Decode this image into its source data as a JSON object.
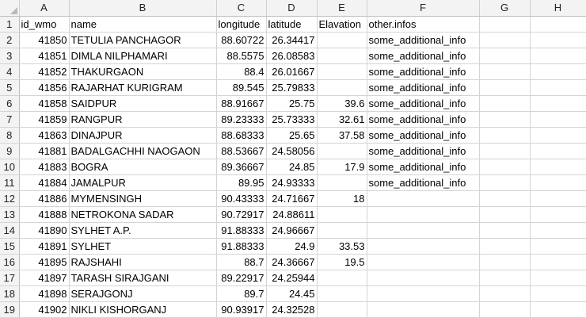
{
  "columns": [
    "A",
    "B",
    "C",
    "D",
    "E",
    "F",
    "G",
    "H"
  ],
  "row_numbers": [
    "1",
    "2",
    "3",
    "4",
    "5",
    "6",
    "7",
    "8",
    "9",
    "10",
    "11",
    "12",
    "13",
    "14",
    "15",
    "16",
    "17",
    "18",
    "19"
  ],
  "header_row": [
    "id_wmo",
    "name",
    "longitude",
    "latitude",
    "Elavation",
    "other.infos",
    "",
    ""
  ],
  "rows": [
    [
      "41850",
      "TETULIA PANCHAGOR",
      "88.60722",
      "26.34417",
      "",
      "some_additional_info"
    ],
    [
      "41851",
      "DIMLA NILPHAMARI",
      "88.5575",
      "26.08583",
      "",
      "some_additional_info"
    ],
    [
      "41852",
      "THAKURGAON",
      "88.4",
      "26.01667",
      "",
      "some_additional_info"
    ],
    [
      "41856",
      "RAJARHAT KURIGRAM",
      "89.545",
      "25.79833",
      "",
      "some_additional_info"
    ],
    [
      "41858",
      "SAIDPUR",
      "88.91667",
      "25.75",
      "39.6",
      "some_additional_info"
    ],
    [
      "41859",
      "RANGPUR",
      "89.23333",
      "25.73333",
      "32.61",
      "some_additional_info"
    ],
    [
      "41863",
      "DINAJPUR",
      "88.68333",
      "25.65",
      "37.58",
      "some_additional_info"
    ],
    [
      "41881",
      "BADALGACHHI NAOGAON",
      "88.53667",
      "24.58056",
      "",
      "some_additional_info"
    ],
    [
      "41883",
      "BOGRA",
      "89.36667",
      "24.85",
      "17.9",
      "some_additional_info"
    ],
    [
      "41884",
      "JAMALPUR",
      "89.95",
      "24.93333",
      "",
      "some_additional_info"
    ],
    [
      "41886",
      "MYMENSINGH",
      "90.43333",
      "24.71667",
      "18",
      ""
    ],
    [
      "41888",
      "NETROKONA SADAR",
      "90.72917",
      "24.88611",
      "",
      ""
    ],
    [
      "41890",
      "SYLHET A.P.",
      "91.88333",
      "24.96667",
      "",
      ""
    ],
    [
      "41891",
      "SYLHET",
      "91.88333",
      "24.9",
      "33.53",
      ""
    ],
    [
      "41895",
      "RAJSHAHI",
      "88.7",
      "24.36667",
      "19.5",
      ""
    ],
    [
      "41897",
      "TARASH SIRAJGANI",
      "89.22917",
      "24.25944",
      "",
      ""
    ],
    [
      "41898",
      "SERAJGONJ",
      "89.7",
      "24.45",
      "",
      ""
    ],
    [
      "41902",
      "NIKLI KISHORGANJ",
      "90.93917",
      "24.32528",
      "",
      ""
    ]
  ]
}
